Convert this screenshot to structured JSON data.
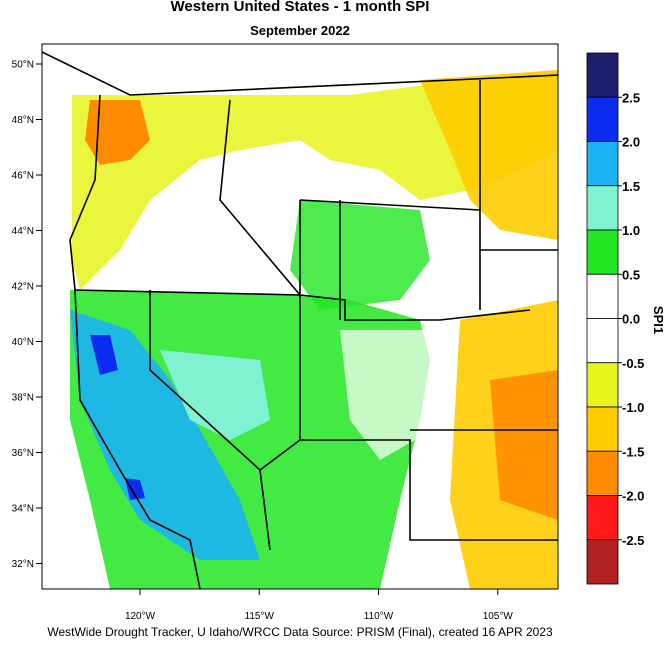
{
  "title": "Western United States - 1 month SPI",
  "subtitle": "September 2022",
  "map": {
    "lat_ticks": [
      {
        "value": 50,
        "label": "50°N"
      },
      {
        "value": 48,
        "label": "48°N"
      },
      {
        "value": 46,
        "label": "46°N"
      },
      {
        "value": 44,
        "label": "44°N"
      },
      {
        "value": 42,
        "label": "42°N"
      },
      {
        "value": 40,
        "label": "40°N"
      },
      {
        "value": 38,
        "label": "38°N"
      },
      {
        "value": 36,
        "label": "36°N"
      },
      {
        "value": 34,
        "label": "34°N"
      },
      {
        "value": 32,
        "label": "32°N"
      }
    ],
    "lon_ticks": [
      {
        "value": -120,
        "label": "120°W"
      },
      {
        "value": -115,
        "label": "115°W"
      },
      {
        "value": -110,
        "label": "110°W"
      },
      {
        "value": -105,
        "label": "105°W"
      }
    ]
  },
  "legend": {
    "title": "SPI1",
    "ticks": [
      {
        "value": 2.5,
        "label": "2.5"
      },
      {
        "value": 2,
        "label": "2.0"
      },
      {
        "value": 1.5,
        "label": "1.5"
      },
      {
        "value": 1,
        "label": "1.0"
      },
      {
        "value": 0.5,
        "label": "0.5"
      },
      {
        "value": 0,
        "label": "0.0"
      },
      {
        "value": -0.5,
        "label": "-0.5"
      },
      {
        "value": -1,
        "label": "-1.0"
      },
      {
        "value": -1.5,
        "label": "-1.5"
      },
      {
        "value": -2,
        "label": "-2.0"
      },
      {
        "value": -2.5,
        "label": "-2.5"
      }
    ],
    "colors": [
      "#1b1f6e",
      "#0b2cf0",
      "#1ab4f5",
      "#80f2d2",
      "#22e622",
      "#ffffff",
      "#ffffff",
      "#e6f31c",
      "#ffcc00",
      "#ff8c00",
      "#ff1a1a",
      "#b22222"
    ]
  },
  "footer": "WestWide Drought Tracker, U Idaho/WRCC Data Source: PRISM (Final), created 16 APR 2023"
}
